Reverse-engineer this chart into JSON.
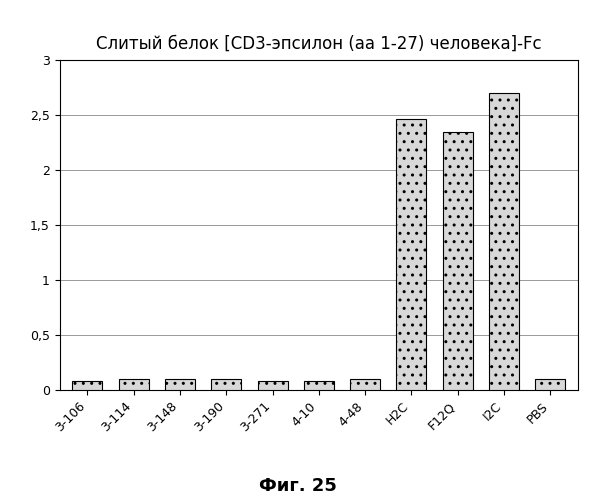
{
  "title": "Слитый белок [CD3-эпсилон (аа 1-27) человека]-Fc",
  "categories": [
    "3-106",
    "3-114",
    "3-148",
    "3-190",
    "3-271",
    "4-10",
    "4-48",
    "H2C",
    "F12Q",
    "I2C",
    "PBS"
  ],
  "values": [
    0.08,
    0.1,
    0.1,
    0.1,
    0.08,
    0.08,
    0.1,
    2.46,
    2.35,
    2.7,
    0.1
  ],
  "ylim": [
    0,
    3
  ],
  "yticks": [
    0,
    0.5,
    1,
    1.5,
    2,
    2.5,
    3
  ],
  "ytick_labels": [
    "0",
    "0,5",
    "1",
    "1,5",
    "2",
    "2,5",
    "3"
  ],
  "bar_edge_color": "#000000",
  "background_color": "#ffffff",
  "title_fontsize": 12,
  "tick_fontsize": 9,
  "caption": "Фиг. 25",
  "caption_fontsize": 13,
  "grid_color": "#999999",
  "hatch_pattern": "..",
  "bar_facecolor": "#d8d8d8"
}
